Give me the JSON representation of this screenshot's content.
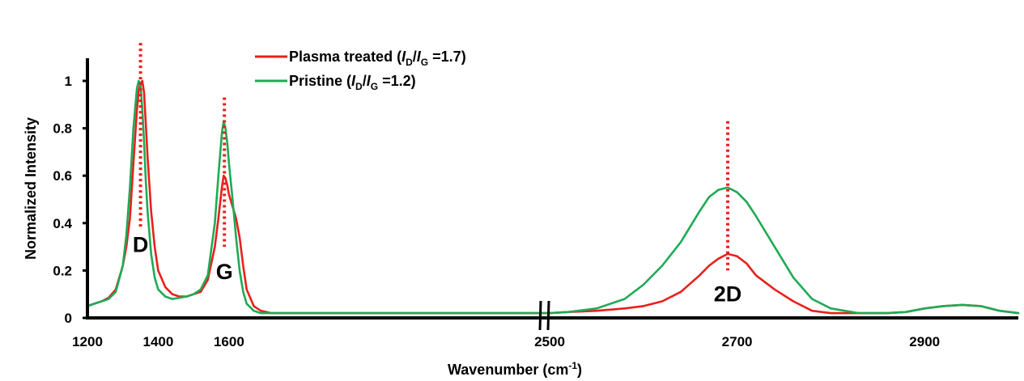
{
  "chart_data": {
    "type": "line",
    "xlabel": "Wavenumber (cm",
    "xlabel_sup": "-1",
    "xlabel_tail": ")",
    "ylabel": "Normalized Intensity",
    "ylim": [
      0,
      1.1
    ],
    "axis_break": true,
    "x_segments": [
      {
        "range": [
          1200,
          2490
        ]
      },
      {
        "range": [
          2500,
          3000
        ]
      }
    ],
    "x_ticks": [
      {
        "value": 1200,
        "label": "1200"
      },
      {
        "value": 1400,
        "label": "1400"
      },
      {
        "value": 1600,
        "label": "1600"
      },
      {
        "value": 2500,
        "label": "2500"
      },
      {
        "value": 2700,
        "label": "2700"
      },
      {
        "value": 2900,
        "label": "2900"
      }
    ],
    "y_ticks": [
      {
        "value": 0,
        "label": "0"
      },
      {
        "value": 0.2,
        "label": "0.2"
      },
      {
        "value": 0.4,
        "label": "0.4"
      },
      {
        "value": 0.6,
        "label": "0.6"
      },
      {
        "value": 0.8,
        "label": "0.8"
      },
      {
        "value": 1,
        "label": "1"
      }
    ],
    "legend_position": "top-center",
    "series": [
      {
        "name": "Plasma treated",
        "ratio_text": "=1.7",
        "color": "#e8201c",
        "x": [
          1200,
          1220,
          1240,
          1260,
          1280,
          1300,
          1310,
          1320,
          1330,
          1340,
          1345,
          1350,
          1355,
          1360,
          1365,
          1370,
          1380,
          1390,
          1400,
          1420,
          1440,
          1460,
          1480,
          1500,
          1520,
          1540,
          1560,
          1570,
          1580,
          1585,
          1590,
          1595,
          1600,
          1610,
          1620,
          1630,
          1640,
          1650,
          1670,
          1690,
          1720,
          1780,
          2490,
          2500,
          2520,
          2550,
          2580,
          2600,
          2620,
          2640,
          2660,
          2670,
          2680,
          2690,
          2700,
          2710,
          2720,
          2740,
          2760,
          2780,
          2800,
          2830,
          2860,
          2880,
          2900,
          2920,
          2940,
          2960,
          2980,
          3000
        ],
        "y": [
          0.05,
          0.06,
          0.07,
          0.085,
          0.12,
          0.22,
          0.3,
          0.42,
          0.65,
          0.88,
          0.96,
          0.99,
          1.0,
          0.95,
          0.82,
          0.68,
          0.45,
          0.3,
          0.2,
          0.13,
          0.1,
          0.09,
          0.09,
          0.1,
          0.11,
          0.16,
          0.3,
          0.42,
          0.55,
          0.6,
          0.59,
          0.56,
          0.52,
          0.47,
          0.42,
          0.34,
          0.22,
          0.12,
          0.05,
          0.03,
          0.02,
          0.02,
          0.02,
          0.02,
          0.025,
          0.03,
          0.04,
          0.05,
          0.07,
          0.11,
          0.18,
          0.22,
          0.25,
          0.27,
          0.26,
          0.23,
          0.18,
          0.12,
          0.07,
          0.03,
          0.02,
          0.02,
          0.02,
          0.025,
          0.04,
          0.05,
          0.055,
          0.05,
          0.03,
          0.02
        ]
      },
      {
        "name": "Pristine",
        "ratio_text": "=1.2",
        "color": "#1faa55",
        "x": [
          1200,
          1220,
          1240,
          1260,
          1280,
          1300,
          1310,
          1320,
          1330,
          1340,
          1345,
          1350,
          1355,
          1360,
          1365,
          1370,
          1380,
          1390,
          1400,
          1420,
          1440,
          1460,
          1480,
          1500,
          1520,
          1540,
          1560,
          1570,
          1580,
          1585,
          1590,
          1595,
          1600,
          1610,
          1620,
          1630,
          1640,
          1650,
          1670,
          1690,
          1720,
          1780,
          2490,
          2500,
          2520,
          2550,
          2580,
          2600,
          2620,
          2640,
          2660,
          2670,
          2680,
          2690,
          2700,
          2710,
          2720,
          2740,
          2760,
          2780,
          2800,
          2830,
          2860,
          2880,
          2900,
          2920,
          2940,
          2960,
          2980,
          3000
        ],
        "y": [
          0.05,
          0.06,
          0.07,
          0.08,
          0.11,
          0.22,
          0.35,
          0.55,
          0.8,
          0.97,
          1.0,
          0.98,
          0.88,
          0.74,
          0.58,
          0.45,
          0.27,
          0.17,
          0.12,
          0.09,
          0.08,
          0.085,
          0.09,
          0.1,
          0.12,
          0.18,
          0.4,
          0.6,
          0.78,
          0.83,
          0.8,
          0.74,
          0.65,
          0.5,
          0.34,
          0.2,
          0.11,
          0.06,
          0.03,
          0.02,
          0.02,
          0.02,
          0.02,
          0.02,
          0.025,
          0.04,
          0.08,
          0.14,
          0.22,
          0.32,
          0.45,
          0.51,
          0.54,
          0.55,
          0.53,
          0.49,
          0.43,
          0.3,
          0.17,
          0.08,
          0.04,
          0.02,
          0.02,
          0.025,
          0.04,
          0.05,
          0.055,
          0.05,
          0.03,
          0.02
        ]
      }
    ],
    "peak_markers": [
      {
        "label": "D",
        "x": 1350,
        "y_top": 1.16,
        "y_bottom": 0.38
      },
      {
        "label": "G",
        "x": 1587,
        "y_top": 0.93,
        "y_bottom": 0.3
      },
      {
        "label": "2D",
        "x": 2690,
        "y_top": 0.83,
        "y_bottom": 0.2
      }
    ],
    "marker_color": "#e8201c"
  }
}
